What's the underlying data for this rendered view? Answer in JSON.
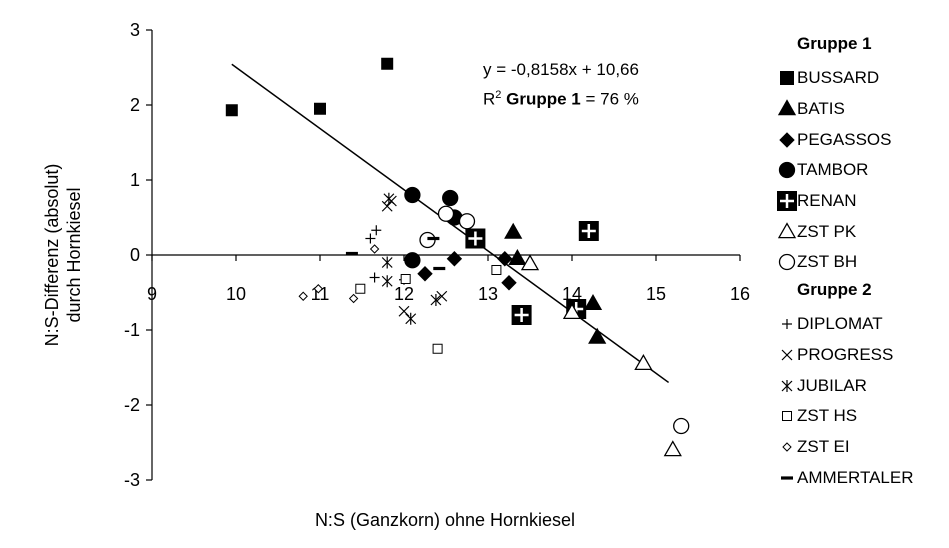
{
  "chart_data": {
    "type": "scatter",
    "title": "",
    "xlabel": "N:S (Ganzkorn) ohne Hornkiesel",
    "ylabel": "N:S-Differenz (absolut) durch Hornkiesel",
    "xlim": [
      9,
      16
    ],
    "ylim": [
      -3,
      3
    ],
    "xticks": [
      "9",
      "10",
      "11",
      "12",
      "13",
      "14",
      "15",
      "16"
    ],
    "yticks": [
      "3",
      "2",
      "1",
      "0",
      "-1",
      "-2",
      "-3"
    ],
    "grid": false,
    "legend_position": "right",
    "regression": {
      "equation": "y = -0,8158x + 10,66",
      "r2_prefix": "R",
      "r2_sup": "2",
      "r2_bold": "Gruppe 1",
      "r2_value": " = 76 %",
      "slope": -0.8158,
      "intercept": 10.66,
      "x_range": [
        9.95,
        15.15
      ]
    },
    "groups": [
      {
        "name": "Gruppe 1",
        "series": [
          {
            "name": "BUSSARD",
            "marker": "square-filled",
            "points": [
              [
                9.95,
                1.93
              ],
              [
                11.0,
                1.95
              ],
              [
                11.8,
                2.55
              ],
              [
                12.85,
                0.22
              ]
            ]
          },
          {
            "name": "BATIS",
            "marker": "triangle-filled",
            "points": [
              [
                13.3,
                0.3
              ],
              [
                13.35,
                -0.05
              ],
              [
                14.25,
                -0.65
              ],
              [
                14.3,
                -1.1
              ]
            ]
          },
          {
            "name": "PEGASSOS",
            "marker": "diamond-filled",
            "points": [
              [
                12.25,
                -0.25
              ],
              [
                12.6,
                -0.05
              ],
              [
                13.2,
                -0.05
              ],
              [
                13.25,
                -0.37
              ]
            ]
          },
          {
            "name": "TAMBOR",
            "marker": "circle-filled",
            "points": [
              [
                12.1,
                0.8
              ],
              [
                12.1,
                -0.07
              ],
              [
                12.55,
                0.76
              ],
              [
                12.6,
                0.5
              ]
            ]
          },
          {
            "name": "RENAN",
            "marker": "square-plus",
            "points": [
              [
                12.85,
                0.22
              ],
              [
                13.4,
                -0.8
              ],
              [
                14.05,
                -0.72
              ],
              [
                14.2,
                0.32
              ]
            ]
          },
          {
            "name": "ZST PK",
            "marker": "triangle-open",
            "points": [
              [
                13.5,
                -0.12
              ],
              [
                14.0,
                -0.77
              ],
              [
                14.85,
                -1.45
              ],
              [
                15.2,
                -2.6
              ]
            ]
          },
          {
            "name": "ZST BH",
            "marker": "circle-open",
            "points": [
              [
                12.28,
                0.2
              ],
              [
                12.5,
                0.55
              ],
              [
                12.75,
                0.45
              ],
              [
                15.3,
                -2.28
              ]
            ]
          }
        ]
      },
      {
        "name": "Gruppe 2",
        "series": [
          {
            "name": "DIPLOMAT",
            "marker": "plus",
            "points": [
              [
                11.6,
                0.22
              ],
              [
                11.67,
                0.33
              ],
              [
                11.65,
                -0.3
              ],
              [
                12.0,
                -0.33
              ]
            ]
          },
          {
            "name": "PROGRESS",
            "marker": "x",
            "points": [
              [
                11.8,
                0.65
              ],
              [
                11.85,
                0.72
              ],
              [
                12.0,
                -0.75
              ],
              [
                12.45,
                -0.55
              ]
            ]
          },
          {
            "name": "JUBILAR",
            "marker": "star",
            "points": [
              [
                11.82,
                0.75
              ],
              [
                11.8,
                -0.1
              ],
              [
                11.8,
                -0.35
              ],
              [
                12.08,
                -0.85
              ],
              [
                12.38,
                -0.6
              ]
            ]
          },
          {
            "name": "ZST HS",
            "marker": "square-open",
            "points": [
              [
                11.48,
                -0.45
              ],
              [
                12.02,
                -0.32
              ],
              [
                12.4,
                -1.25
              ],
              [
                13.1,
                -0.2
              ]
            ]
          },
          {
            "name": "ZST EI",
            "marker": "diamond-open",
            "points": [
              [
                10.8,
                -0.55
              ],
              [
                10.98,
                -0.45
              ],
              [
                11.4,
                -0.58
              ],
              [
                11.65,
                0.08
              ]
            ]
          },
          {
            "name": "AMMERTALER",
            "marker": "dash",
            "points": [
              [
                11.38,
                0.02
              ],
              [
                12.35,
                0.22
              ],
              [
                12.42,
                -0.18
              ]
            ]
          }
        ]
      }
    ]
  }
}
